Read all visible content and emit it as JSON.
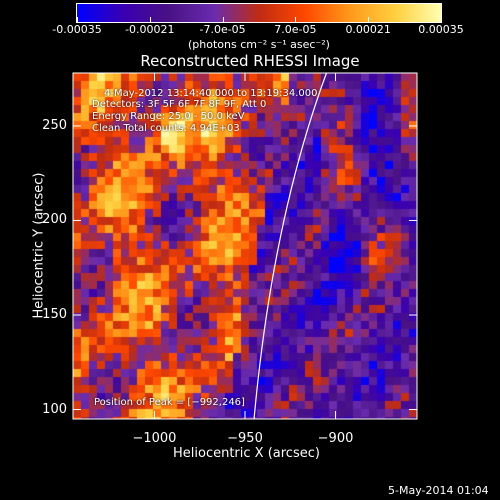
{
  "colorbar": {
    "ticks": [
      "-0.00035",
      "-0.00021",
      "-7.0e-05",
      "7.0e-05",
      "0.00021",
      "0.00035"
    ],
    "min": -0.00035,
    "max": 0.00035,
    "units": "(photons cm⁻² s⁻¹ asec⁻²)"
  },
  "chart_data": {
    "type": "heatmap",
    "title": "Reconstructed RHESSI Image",
    "xlabel": "Heliocentric X (arcsec)",
    "ylabel": "Heliocentric Y (arcsec)",
    "xlim": [
      -1045,
      -855
    ],
    "ylim": [
      95,
      278
    ],
    "xticks": [
      -1000,
      -950,
      -900
    ],
    "xtick_labels": [
      "−1000",
      "−950",
      "−900"
    ],
    "yticks": [
      100,
      150,
      200,
      250
    ],
    "ytick_labels": [
      "100",
      "150",
      "200",
      "250"
    ],
    "annotations": {
      "time": "4-May-2012 13:14:40.000 to 13:19:34.000",
      "detectors": "Detectors: 3F 5F 6F 7F 8F 9F, Att 0",
      "energy": "Energy Range: 25.0 - 50.0 keV",
      "clean": "Clean     Total counts: 4.94E+03",
      "peak": "Position of Peak = [−992,246]"
    },
    "peak": [
      -992,
      246
    ],
    "colormap": [
      "#0000ff",
      "#3a00b4",
      "#4a1285",
      "#6a2cb0",
      "#c02c14",
      "#ff4800",
      "#ff9a1c",
      "#ffd040",
      "#ffffb0"
    ]
  },
  "footer": {
    "date": "5-May-2014 01:04"
  }
}
